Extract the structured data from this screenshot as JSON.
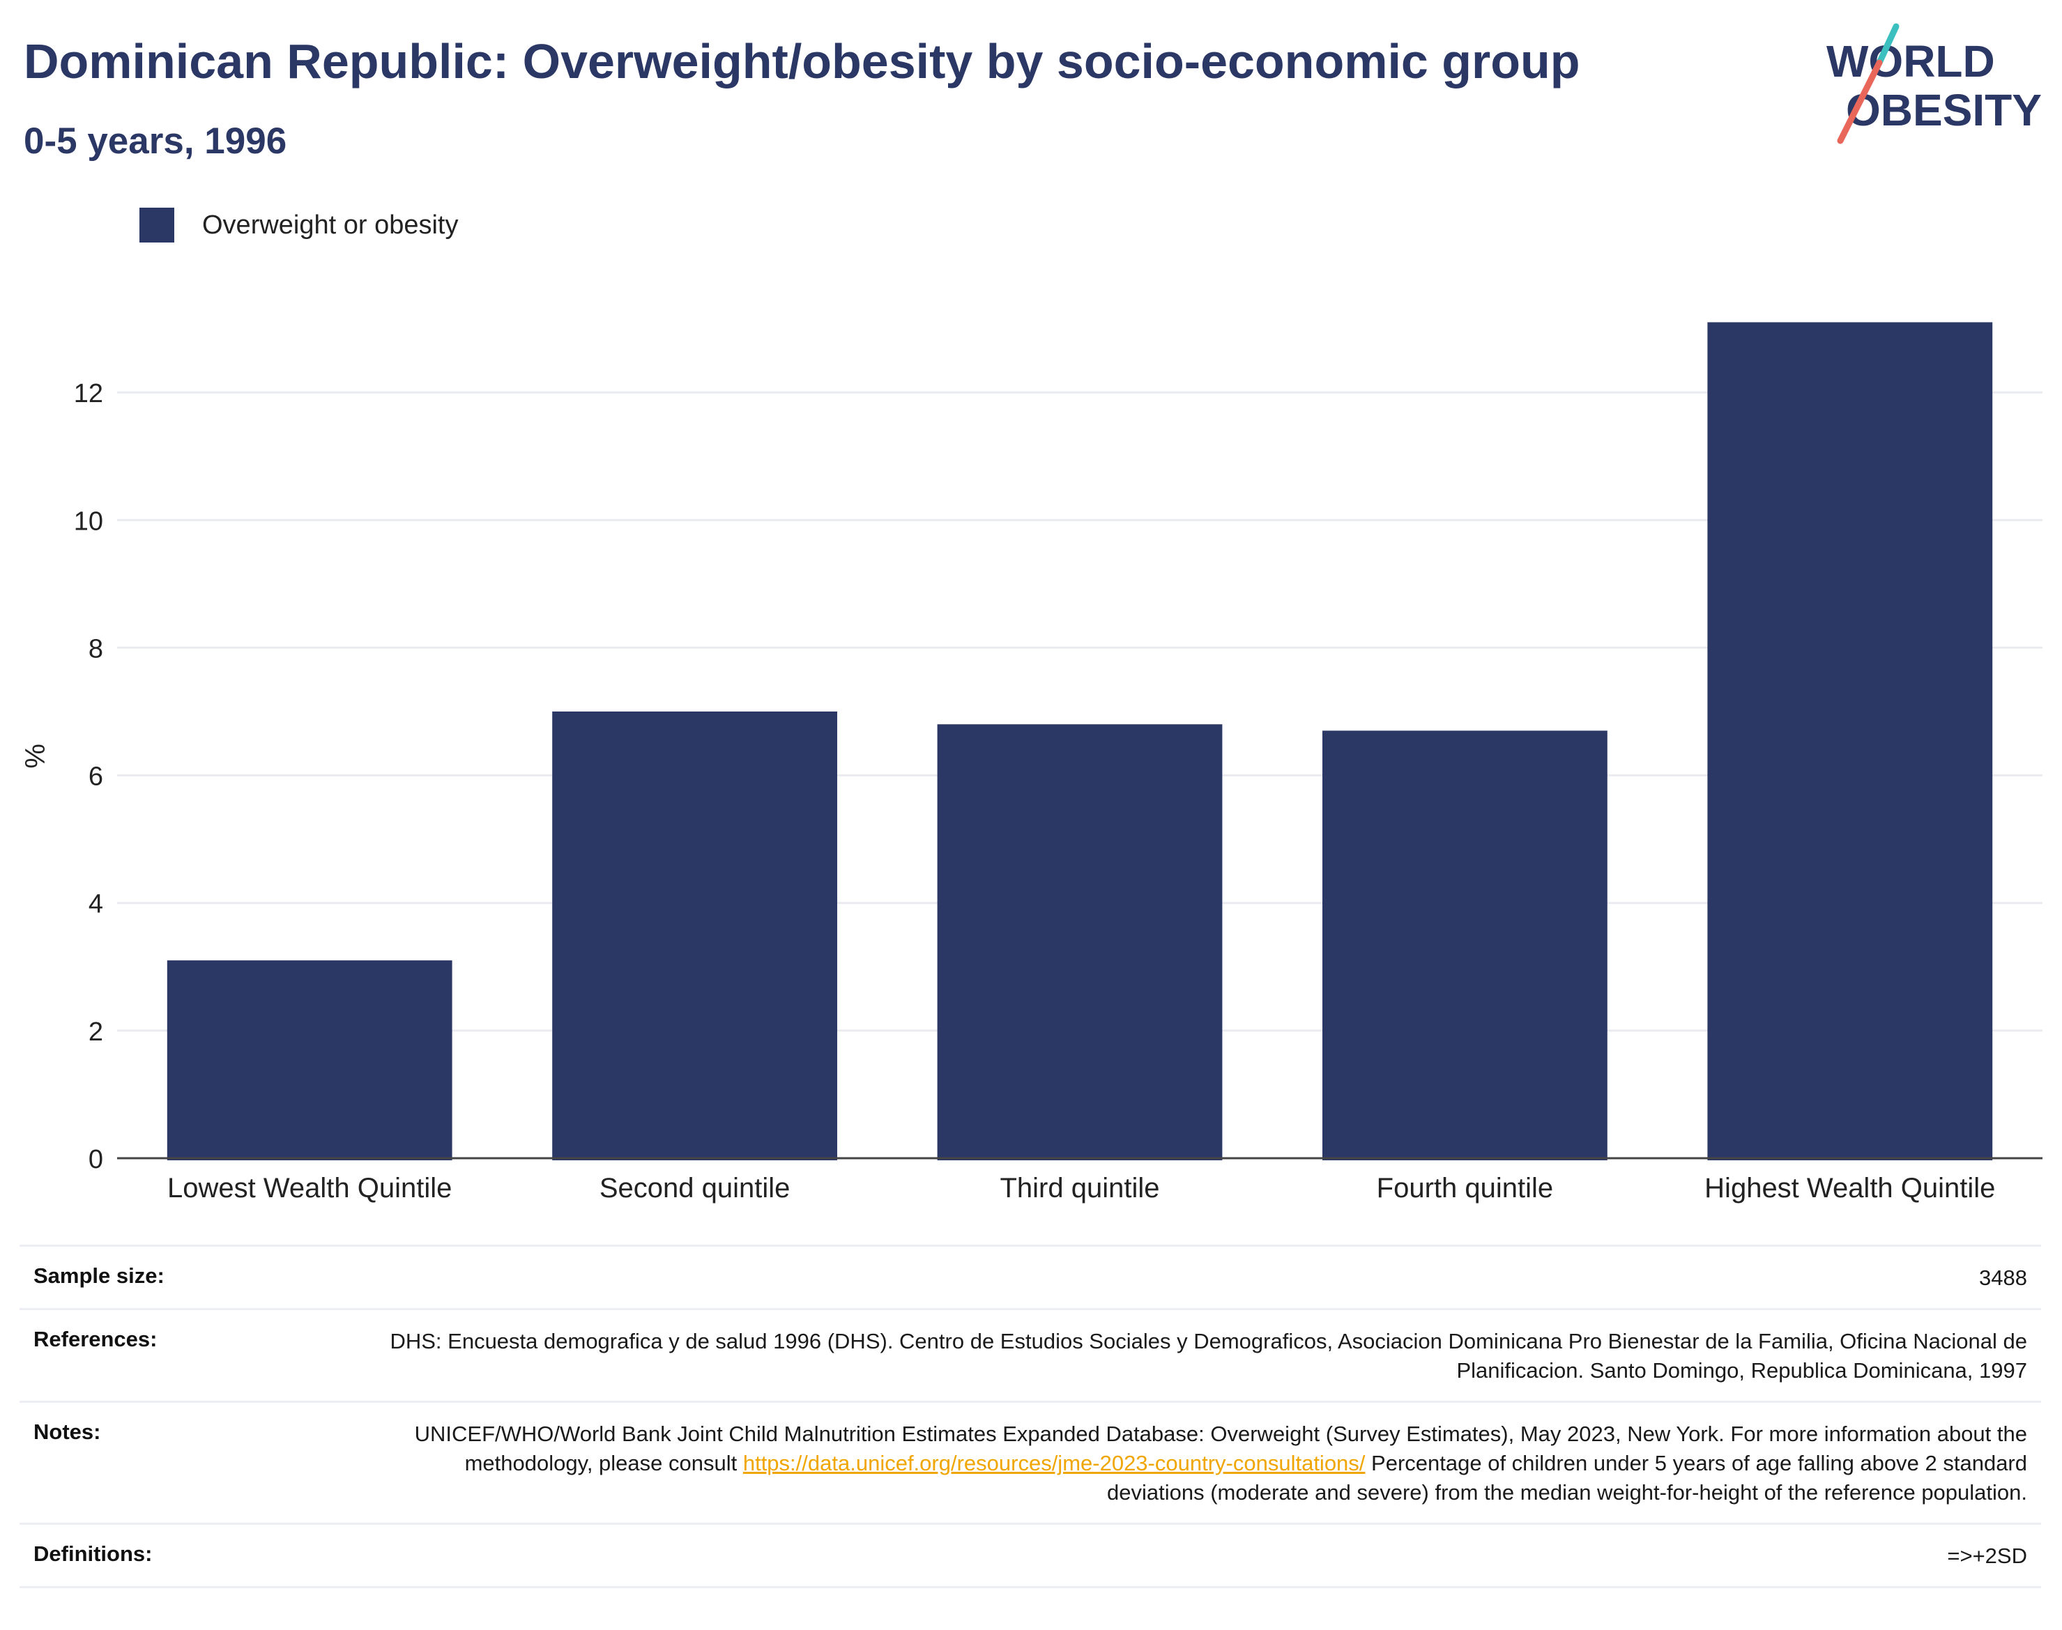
{
  "header": {
    "title": "Dominican Republic: Overweight/obesity by socio-economic group",
    "subtitle": "0-5 years, 1996"
  },
  "logo": {
    "line1": "WORLD",
    "line2": "OBESITY",
    "colors": {
      "text": "#2b3764",
      "slash_teal": "#3bbfbf",
      "slash_red": "#e8675a"
    }
  },
  "legend": {
    "label": "Overweight or obesity"
  },
  "chart_data": {
    "type": "bar",
    "categories": [
      "Lowest Wealth Quintile",
      "Second quintile",
      "Third quintile",
      "Fourth quintile",
      "Highest Wealth Quintile"
    ],
    "series": [
      {
        "name": "Overweight or obesity",
        "values": [
          3.1,
          7.0,
          6.8,
          6.7,
          13.1
        ],
        "color": "#2b3764"
      }
    ],
    "ylabel": "%",
    "ylim": [
      0,
      14
    ],
    "yticks": [
      0,
      2,
      4,
      6,
      8,
      10,
      12
    ],
    "grid": true,
    "legend_position": "top-left"
  },
  "info": {
    "sample_size": {
      "label": "Sample size:",
      "value": "3488"
    },
    "references": {
      "label": "References:",
      "value": "DHS: Encuesta demografica y de salud 1996 (DHS). Centro de Estudios Sociales y Demograficos, Asociacion Dominicana Pro Bienestar de la Familia, Oficina Nacional de Planificacion. Santo Domingo, Republica Dominicana, 1997"
    },
    "notes": {
      "label": "Notes:",
      "text_before": "UNICEF/WHO/World Bank Joint Child Malnutrition Estimates Expanded Database: Overweight (Survey Estimates), May 2023, New York. For more information about the methodology, please consult ",
      "link": "https://data.unicef.org/resources/jme-2023-country-consultations/",
      "text_after": " Percentage of children under 5 years of age falling above 2 standard deviations (moderate and severe) from the median weight-for-height of the reference population."
    },
    "definitions": {
      "label": "Definitions:",
      "value": "=>+2SD"
    }
  }
}
